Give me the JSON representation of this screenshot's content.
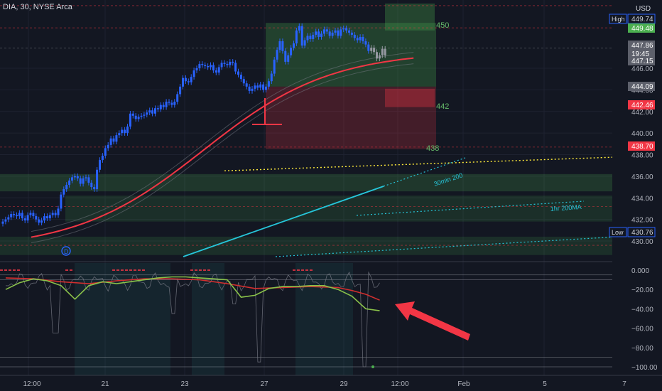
{
  "header": {
    "symbol_title": "DIA, 30, NYSE Arca"
  },
  "axis": {
    "currency": "USD"
  },
  "colors": {
    "background": "#131722",
    "grid": "#1e2230",
    "candle_up": "#2962ff",
    "candle_down": "#2962ff",
    "ma_red": "#f23645",
    "ma_cyan": "#26c6da",
    "trend_yellow": "#ffeb3b",
    "trend_cyan": "#26c6da",
    "zone_green": "#4caf50",
    "zone_red": "#f23645",
    "osc_green": "#8bc34a",
    "osc_red": "#d32f2f",
    "osc_gray": "#787b86",
    "arrow": "#f23645"
  },
  "chart_data": [
    {
      "type": "candlestick",
      "ylim": [
        429,
        452
      ],
      "y_ticks": [
        430,
        432,
        434,
        436,
        438,
        440,
        442,
        444,
        446
      ],
      "x_labels": [
        "12:00",
        "21",
        "23",
        "27",
        "29",
        "12:00",
        "Feb",
        "5",
        "7"
      ],
      "series": [
        {
          "x": [
            0,
            1,
            2,
            3,
            4,
            5,
            6,
            7,
            8,
            9,
            10,
            11,
            12,
            13,
            14,
            15,
            16,
            17,
            18,
            19,
            20,
            21,
            22,
            23,
            24,
            25,
            26,
            27,
            28,
            29,
            30,
            31,
            32,
            33,
            34,
            35,
            36,
            37,
            38,
            39,
            40,
            41,
            42,
            43,
            44,
            45,
            46,
            47,
            48,
            49,
            50,
            51,
            52,
            53,
            54,
            55,
            56,
            57,
            58,
            59,
            60,
            61,
            62,
            63,
            64,
            65,
            66,
            67,
            68,
            69,
            70,
            71,
            72,
            73,
            74,
            75,
            76,
            77,
            78,
            79,
            80,
            81,
            82,
            83,
            84,
            85,
            86,
            87,
            88,
            89,
            90,
            91,
            92,
            93,
            94,
            95,
            96,
            97,
            98,
            99,
            100,
            101,
            102,
            103,
            104,
            105,
            106,
            107,
            108,
            109,
            110,
            111,
            112,
            113,
            114,
            115,
            116,
            117,
            118,
            119,
            120,
            121,
            122,
            123,
            124,
            125,
            126,
            127,
            128,
            129,
            130,
            131,
            132,
            133,
            134,
            135,
            136,
            137,
            138
          ],
          "close": [
            431.8,
            432.0,
            432.2,
            432.5,
            432.4,
            432.3,
            432.6,
            432.1,
            431.9,
            432.4,
            432.6,
            432.3,
            432.0,
            431.7,
            431.9,
            432.3,
            432.1,
            432.4,
            432.6,
            432.4,
            433.0,
            434.3,
            434.8,
            435.2,
            435.6,
            435.9,
            436.0,
            435.8,
            435.3,
            435.8,
            435.9,
            435.4,
            435.0,
            434.8,
            436.6,
            437.5,
            437.9,
            438.6,
            438.9,
            439.5,
            439.2,
            439.8,
            440.0,
            440.3,
            440.0,
            440.6,
            441.8,
            441.6,
            441.3,
            441.5,
            441.6,
            441.7,
            441.9,
            442.1,
            441.8,
            442.3,
            442.2,
            442.6,
            442.4,
            442.9,
            442.8,
            442.6,
            442.9,
            443.6,
            444.3,
            445.1,
            444.8,
            444.7,
            445.2,
            445.8,
            446.0,
            446.4,
            446.3,
            446.2,
            446.1,
            446.3,
            445.8,
            445.6,
            446.1,
            446.5,
            446.4,
            446.3,
            446.6,
            446.5,
            445.7,
            445.4,
            445.0,
            444.6,
            444.3,
            443.9,
            444.1,
            444.4,
            444.2,
            444.5,
            444.0,
            444.3,
            444.8,
            445.5,
            446.8,
            447.7,
            448.5,
            447.6,
            446.6,
            447.2,
            447.9,
            448.3,
            449.5,
            449.9,
            448.1,
            448.6,
            449.0,
            448.7,
            449.1,
            449.4,
            448.9,
            449.2,
            449.6,
            449.4,
            449.0,
            449.3,
            449.5,
            449.0,
            449.6,
            449.7,
            449.5,
            449.3,
            449.1,
            448.8,
            448.6,
            448.9,
            448.5,
            448.2,
            447.6,
            447.9,
            447.5,
            446.9,
            447.2,
            447.8,
            447.2
          ],
          "name": ""
        }
      ],
      "annotations_price_labels": [
        {
          "text": "High",
          "value": "449.74"
        },
        {
          "text": "",
          "value": "449.48"
        },
        {
          "text": "",
          "value": "447.86"
        },
        {
          "text": "",
          "value": "19:45"
        },
        {
          "text": "",
          "value": "447.15"
        },
        {
          "text": "",
          "value": "444.09"
        },
        {
          "text": "",
          "value": "442.46"
        },
        {
          "text": "",
          "value": "438.70"
        },
        {
          "text": "Low",
          "value": "430.76"
        }
      ],
      "level_labels": [
        "450",
        "442",
        "438"
      ],
      "trendline_labels": [
        "30min 200",
        "1hr 200MA"
      ],
      "marker_label": "D"
    },
    {
      "type": "line",
      "ylim": [
        -105,
        5
      ],
      "y_ticks": [
        "0.000",
        "−20.00",
        "−40.00",
        "−60.00",
        "−80.00",
        "−100.00"
      ],
      "series": [
        {
          "x": [
            0,
            5,
            10,
            15,
            20,
            25,
            30,
            35,
            40,
            45,
            50,
            55,
            60,
            65,
            70,
            75,
            80,
            85,
            90,
            95,
            100,
            105,
            110,
            115,
            120,
            125,
            130,
            135
          ],
          "values": [
            -20,
            -13,
            -9,
            -11,
            -16,
            -30,
            -16,
            -12,
            -14,
            -12,
            -10,
            -8,
            -7,
            -7,
            -8,
            -9,
            -10,
            -28,
            -26,
            -19,
            -17,
            -17,
            -16,
            -16,
            -20,
            -27,
            -40,
            -42
          ]
        },
        {
          "x": [
            0,
            10,
            20,
            30,
            40,
            50,
            60,
            70,
            80,
            90,
            100,
            110,
            120,
            125,
            130,
            135
          ],
          "values": [
            -8,
            -9,
            -12,
            -14,
            -11,
            -9,
            -9,
            -10,
            -14,
            -19,
            -18,
            -17,
            -18,
            -21,
            -25,
            -31
          ]
        }
      ]
    }
  ]
}
